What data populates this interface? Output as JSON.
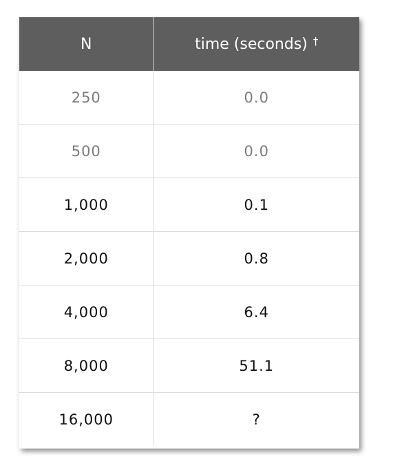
{
  "chart_data": {
    "type": "table",
    "columns": [
      "N",
      "time (seconds)"
    ],
    "header_footnote": "†",
    "rows": [
      {
        "n": "250",
        "time": "0.0",
        "muted": true
      },
      {
        "n": "500",
        "time": "0.0",
        "muted": true
      },
      {
        "n": "1,000",
        "time": "0.1",
        "muted": false
      },
      {
        "n": "2,000",
        "time": "0.8",
        "muted": false
      },
      {
        "n": "4,000",
        "time": "6.4",
        "muted": false
      },
      {
        "n": "8,000",
        "time": "51.1",
        "muted": false
      },
      {
        "n": "16,000",
        "time": "?",
        "muted": false
      }
    ]
  },
  "colors": {
    "header_bg": "#5e5e5e",
    "header_text": "#ffffff",
    "muted_text": "#7c7c7c",
    "body_text": "#111111",
    "row_border": "#dcdcdc"
  }
}
